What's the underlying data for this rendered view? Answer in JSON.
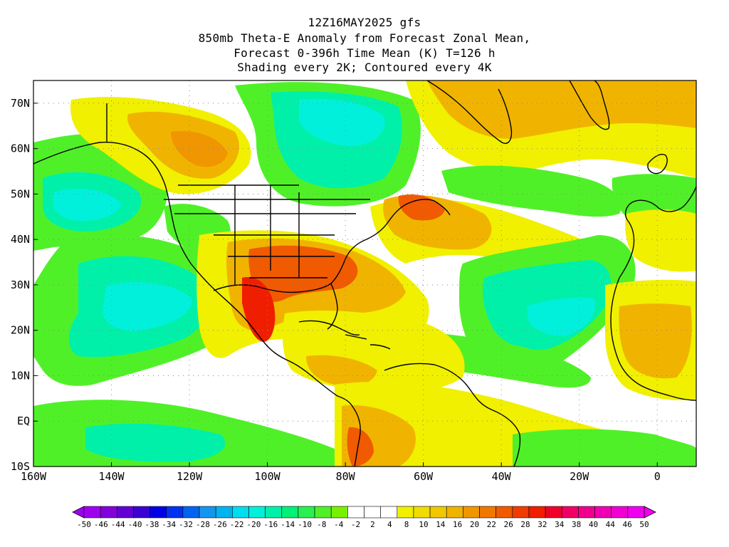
{
  "title": {
    "line1": "12Z16MAY2025 gfs",
    "line2": "850mb Theta-E Anomaly from Forecast Zonal Mean,",
    "line3": "Forecast 0-396h Time Mean (K) T=126 h",
    "line4": "Shading every 2K; Contoured every 4K"
  },
  "map": {
    "lon_range": [
      -160,
      10
    ],
    "lat_range": [
      -10,
      75
    ],
    "lon_labels": [
      "160W",
      "140W",
      "120W",
      "100W",
      "80W",
      "60W",
      "40W",
      "20W",
      "0"
    ],
    "lon_values": [
      -160,
      -140,
      -120,
      -100,
      -80,
      -60,
      -40,
      -20,
      0
    ],
    "lat_labels": [
      "70N",
      "60N",
      "50N",
      "40N",
      "30N",
      "20N",
      "10N",
      "EQ",
      "10S"
    ],
    "lat_values": [
      70,
      60,
      50,
      40,
      30,
      20,
      10,
      0,
      -10
    ],
    "gridlines": "dotted"
  },
  "colorbar": {
    "labels": [
      "-50",
      "-46",
      "-44",
      "-40",
      "-38",
      "-34",
      "-32",
      "-28",
      "-26",
      "-22",
      "-20",
      "-16",
      "-14",
      "-10",
      "-8",
      "-4",
      "-2",
      "2",
      "4",
      "8",
      "10",
      "14",
      "16",
      "20",
      "22",
      "26",
      "28",
      "32",
      "34",
      "38",
      "40",
      "44",
      "46",
      "50"
    ],
    "colors": [
      "#a000f0",
      "#8200dc",
      "#6400d2",
      "#3c00d2",
      "#0000e6",
      "#0032f0",
      "#0064f0",
      "#1496f0",
      "#00b4f0",
      "#00dcf0",
      "#00f0dc",
      "#00f0aa",
      "#00f078",
      "#28f050",
      "#50f028",
      "#78f000",
      "#ffffff",
      "#ffffff",
      "#ffffff",
      "#f0f000",
      "#f0dc00",
      "#f0c800",
      "#f0b400",
      "#f09600",
      "#f07800",
      "#f05a00",
      "#f03c00",
      "#f01e00",
      "#f00028",
      "#f00064",
      "#f0008c",
      "#f000b4",
      "#f000d2",
      "#f000f0"
    ]
  },
  "field_colors": {
    "green": "#50f028",
    "teal": "#00f0aa",
    "cyan": "#00f0dc",
    "yellow": "#f0f000",
    "yellow2": "#f0dc00",
    "orange": "#f0b400",
    "orange2": "#f09600",
    "red": "#f05a00",
    "red2": "#f01e00"
  }
}
